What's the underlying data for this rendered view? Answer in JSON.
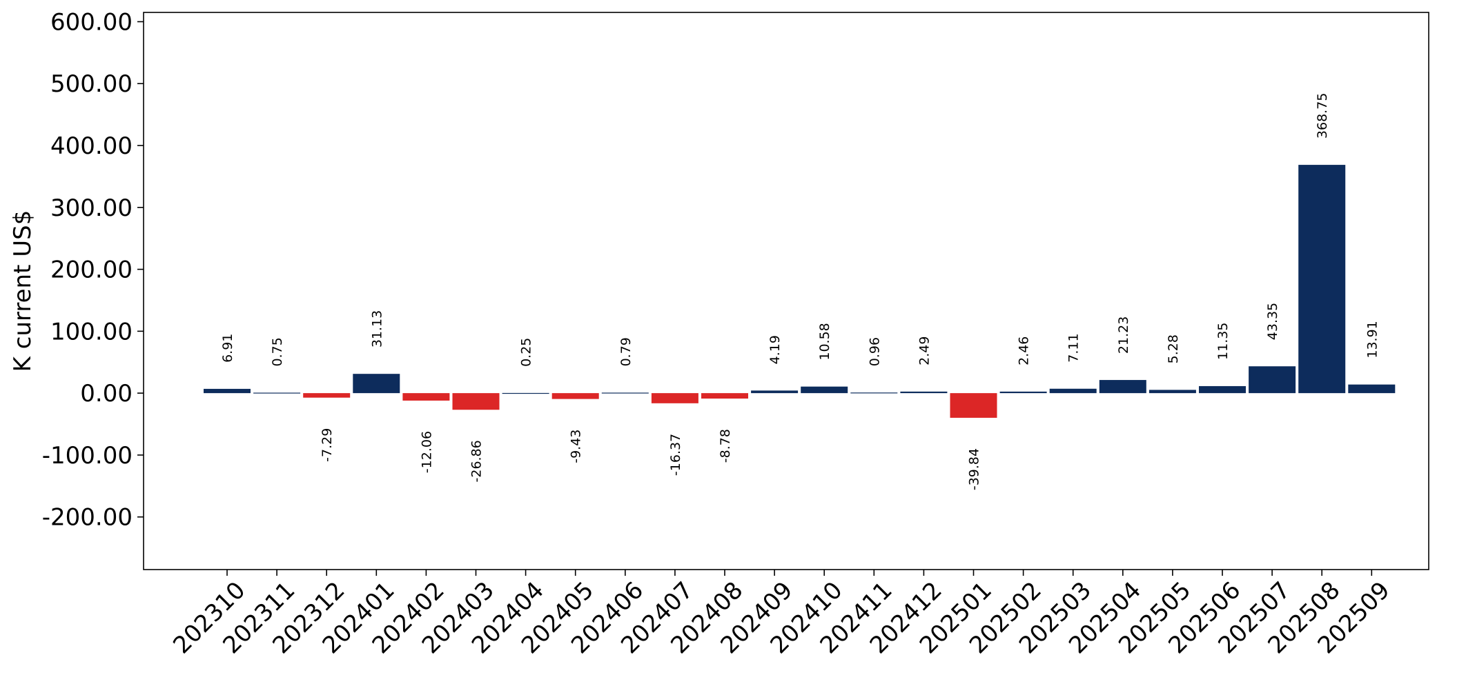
{
  "chart_data": {
    "type": "bar",
    "ylabel": "K current US$",
    "xlabel": "",
    "ylim": [
      -285,
      615
    ],
    "yticks": [
      -200,
      -100,
      0,
      100,
      200,
      300,
      400,
      500,
      600
    ],
    "ytick_labels": [
      "-200.00",
      "-100.00",
      "0.00",
      "100.00",
      "200.00",
      "300.00",
      "400.00",
      "500.00",
      "600.00"
    ],
    "categories": [
      "202310",
      "202311",
      "202312",
      "202401",
      "202402",
      "202403",
      "202404",
      "202405",
      "202406",
      "202407",
      "202408",
      "202409",
      "202410",
      "202411",
      "202412",
      "202501",
      "202502",
      "202503",
      "202504",
      "202505",
      "202506",
      "202507",
      "202508",
      "202509"
    ],
    "values": [
      6.91,
      0.75,
      -7.29,
      31.13,
      -12.06,
      -26.86,
      0.25,
      -9.43,
      0.79,
      -16.37,
      -8.78,
      4.19,
      10.58,
      0.96,
      2.49,
      -39.84,
      2.46,
      7.11,
      21.23,
      5.28,
      11.35,
      43.35,
      368.75,
      13.91
    ],
    "data_labels": [
      "6.91",
      "0.75",
      "-7.29",
      "31.13",
      "-12.06",
      "-26.86",
      "0.25",
      "-9.43",
      "0.79",
      "-16.37",
      "-8.78",
      "4.19",
      "10.58",
      "0.96",
      "2.49",
      "-39.84",
      "2.46",
      "7.11",
      "21.23",
      "5.28",
      "11.35",
      "43.35",
      "368.75",
      "13.91"
    ],
    "colors": {
      "positive": "#0d2c5c",
      "negative": "#dc2626"
    },
    "grid": false,
    "legend": "none"
  }
}
